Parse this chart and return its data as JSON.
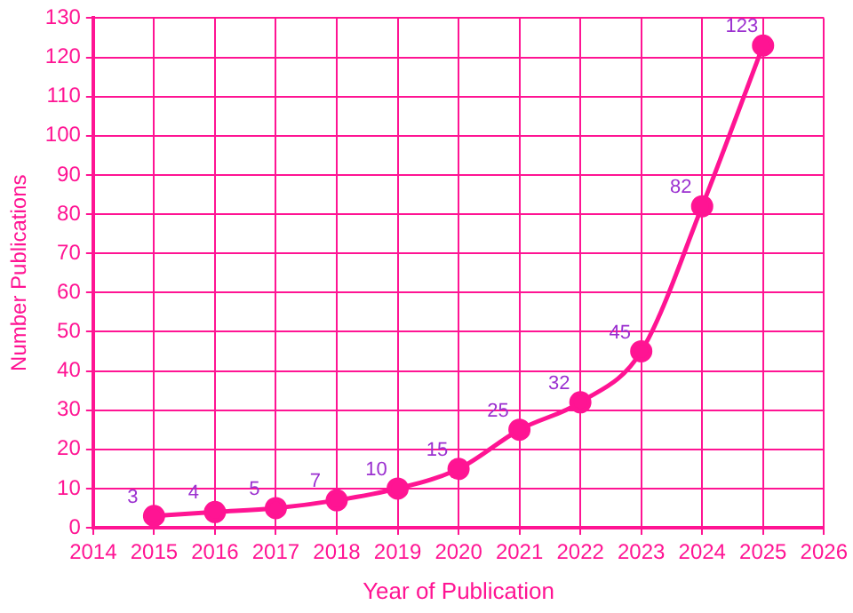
{
  "chart_data": {
    "type": "line",
    "xlabel": "Year of Publication",
    "ylabel": "Number Publications",
    "x": [
      2015,
      2016,
      2017,
      2018,
      2019,
      2020,
      2021,
      2022,
      2023,
      2024,
      2025
    ],
    "series": [
      {
        "color": "#ff1493",
        "values": [
          3,
          4,
          5,
          7,
          10,
          15,
          25,
          32,
          45,
          82,
          123
        ]
      }
    ],
    "xlim": [
      2014,
      2026
    ],
    "xticks": [
      2014,
      2015,
      2016,
      2017,
      2018,
      2019,
      2020,
      2021,
      2022,
      2023,
      2024,
      2025,
      2026
    ],
    "ylim": [
      0,
      130
    ],
    "yticks": [
      0,
      10,
      20,
      30,
      40,
      50,
      60,
      70,
      80,
      90,
      100,
      110,
      120,
      130
    ],
    "grid": true,
    "marker": "circle",
    "data_labels": true,
    "legend": false
  }
}
